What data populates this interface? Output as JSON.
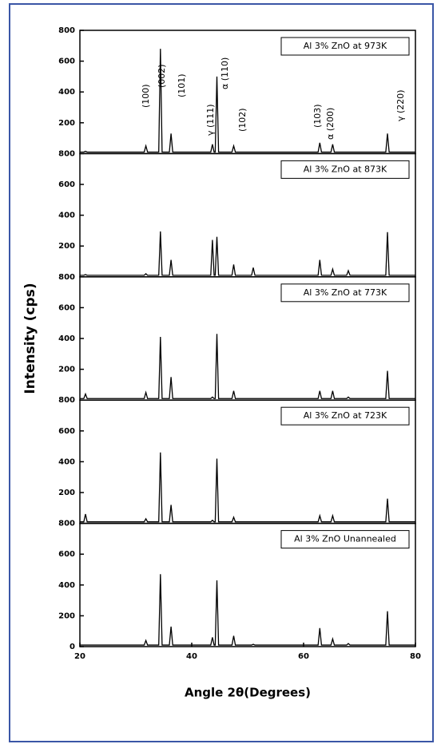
{
  "chart_data": [
    {
      "type": "line",
      "xlim": [
        20,
        80
      ],
      "ylim": [
        0,
        800
      ],
      "yticks": [
        200,
        400,
        600,
        800
      ],
      "x": [
        20,
        20.7,
        21,
        21.3,
        31.5,
        31.8,
        32.1,
        34.1,
        34.4,
        34.7,
        36,
        36.3,
        36.6,
        43.4,
        43.7,
        44,
        44.2,
        44.5,
        44.8,
        47.2,
        47.5,
        47.8,
        50.7,
        51,
        51.3,
        62.6,
        62.9,
        63.2,
        64.9,
        65.2,
        65.5,
        67.7,
        68,
        68.3,
        74.7,
        75,
        75.3,
        80
      ],
      "series": [
        {
          "name": "Al 3% ZnO at 973K",
          "color": "#000000",
          "values": [
            10,
            10,
            15,
            10,
            10,
            50,
            10,
            10,
            680,
            10,
            10,
            130,
            10,
            10,
            60,
            10,
            10,
            500,
            10,
            10,
            50,
            10,
            10,
            10,
            10,
            10,
            70,
            10,
            10,
            60,
            10,
            10,
            10,
            10,
            10,
            130,
            10,
            10
          ]
        }
      ],
      "annotations": [
        "(100)",
        "(002)",
        "(101)",
        "γ (111)",
        "α (110)",
        "(102)",
        "(103)",
        "α (200)",
        "γ (220)"
      ]
    },
    {
      "type": "line",
      "xlim": [
        20,
        80
      ],
      "ylim": [
        0,
        800
      ],
      "yticks": [
        200,
        400,
        600,
        800
      ],
      "x": [
        20,
        20.7,
        21,
        21.3,
        31.5,
        31.8,
        32.1,
        34.1,
        34.4,
        34.7,
        36,
        36.3,
        36.6,
        43.4,
        43.7,
        44,
        44.2,
        44.5,
        44.8,
        47.2,
        47.5,
        47.8,
        50.7,
        51,
        51.3,
        62.6,
        62.9,
        63.2,
        64.9,
        65.2,
        65.5,
        67.7,
        68,
        68.3,
        74.7,
        75,
        75.3,
        80
      ],
      "series": [
        {
          "name": "Al 3% ZnO at 873K",
          "color": "#000000",
          "values": [
            10,
            10,
            15,
            10,
            10,
            20,
            10,
            10,
            295,
            10,
            10,
            110,
            10,
            10,
            240,
            10,
            10,
            260,
            10,
            10,
            80,
            10,
            10,
            60,
            10,
            10,
            110,
            10,
            10,
            50,
            10,
            10,
            40,
            10,
            10,
            290,
            10,
            10
          ]
        }
      ]
    },
    {
      "type": "line",
      "xlim": [
        20,
        80
      ],
      "ylim": [
        0,
        800
      ],
      "yticks": [
        200,
        400,
        600,
        800
      ],
      "ylabel": "Intensity (cps)",
      "x": [
        20,
        20.7,
        21,
        21.3,
        31.5,
        31.8,
        32.1,
        34.1,
        34.4,
        34.7,
        36,
        36.3,
        36.6,
        43.4,
        43.7,
        44,
        44.2,
        44.5,
        44.8,
        47.2,
        47.5,
        47.8,
        50.7,
        51,
        51.3,
        62.6,
        62.9,
        63.2,
        64.9,
        65.2,
        65.5,
        67.7,
        68,
        68.3,
        74.7,
        75,
        75.3,
        80
      ],
      "series": [
        {
          "name": "Al 3% ZnO at 773K",
          "color": "#000000",
          "values": [
            10,
            10,
            40,
            10,
            10,
            50,
            10,
            10,
            410,
            10,
            10,
            150,
            10,
            10,
            20,
            10,
            10,
            430,
            10,
            10,
            60,
            10,
            10,
            10,
            10,
            10,
            60,
            10,
            10,
            60,
            10,
            10,
            20,
            10,
            10,
            190,
            10,
            10
          ]
        }
      ]
    },
    {
      "type": "line",
      "xlim": [
        20,
        80
      ],
      "ylim": [
        0,
        800
      ],
      "yticks": [
        200,
        400,
        600,
        800
      ],
      "x": [
        20,
        20.7,
        21,
        21.3,
        31.5,
        31.8,
        32.1,
        34.1,
        34.4,
        34.7,
        36,
        36.3,
        36.6,
        43.4,
        43.7,
        44,
        44.2,
        44.5,
        44.8,
        47.2,
        47.5,
        47.8,
        50.7,
        51,
        51.3,
        62.6,
        62.9,
        63.2,
        64.9,
        65.2,
        65.5,
        67.7,
        68,
        68.3,
        74.7,
        75,
        75.3,
        80
      ],
      "series": [
        {
          "name": "Al 3% ZnO at 723K",
          "color": "#000000",
          "values": [
            10,
            10,
            60,
            10,
            10,
            30,
            10,
            10,
            460,
            10,
            10,
            120,
            10,
            10,
            20,
            10,
            10,
            420,
            10,
            10,
            40,
            10,
            10,
            10,
            10,
            10,
            50,
            10,
            10,
            50,
            10,
            10,
            10,
            10,
            10,
            160,
            10,
            10
          ]
        }
      ]
    },
    {
      "type": "line",
      "xlim": [
        20,
        80
      ],
      "ylim": [
        0,
        800
      ],
      "yticks": [
        0,
        200,
        400,
        600,
        800
      ],
      "xticks": [
        20,
        40,
        60,
        80
      ],
      "xlabel": "Angle 2θ(Degrees)",
      "x": [
        20,
        20.7,
        21,
        21.3,
        31.5,
        31.8,
        32.1,
        34.1,
        34.4,
        34.7,
        36,
        36.3,
        36.6,
        43.4,
        43.7,
        44,
        44.2,
        44.5,
        44.8,
        47.2,
        47.5,
        47.8,
        50.7,
        51,
        51.3,
        62.6,
        62.9,
        63.2,
        64.9,
        65.2,
        65.5,
        67.7,
        68,
        68.3,
        74.7,
        75,
        75.3,
        80
      ],
      "series": [
        {
          "name": "Al 3% ZnO Unannealed",
          "color": "#000000",
          "values": [
            10,
            10,
            10,
            10,
            10,
            40,
            10,
            10,
            470,
            10,
            10,
            130,
            10,
            10,
            60,
            10,
            10,
            430,
            10,
            10,
            70,
            10,
            10,
            15,
            10,
            10,
            120,
            10,
            10,
            50,
            10,
            10,
            20,
            10,
            10,
            230,
            10,
            10
          ]
        }
      ]
    }
  ]
}
